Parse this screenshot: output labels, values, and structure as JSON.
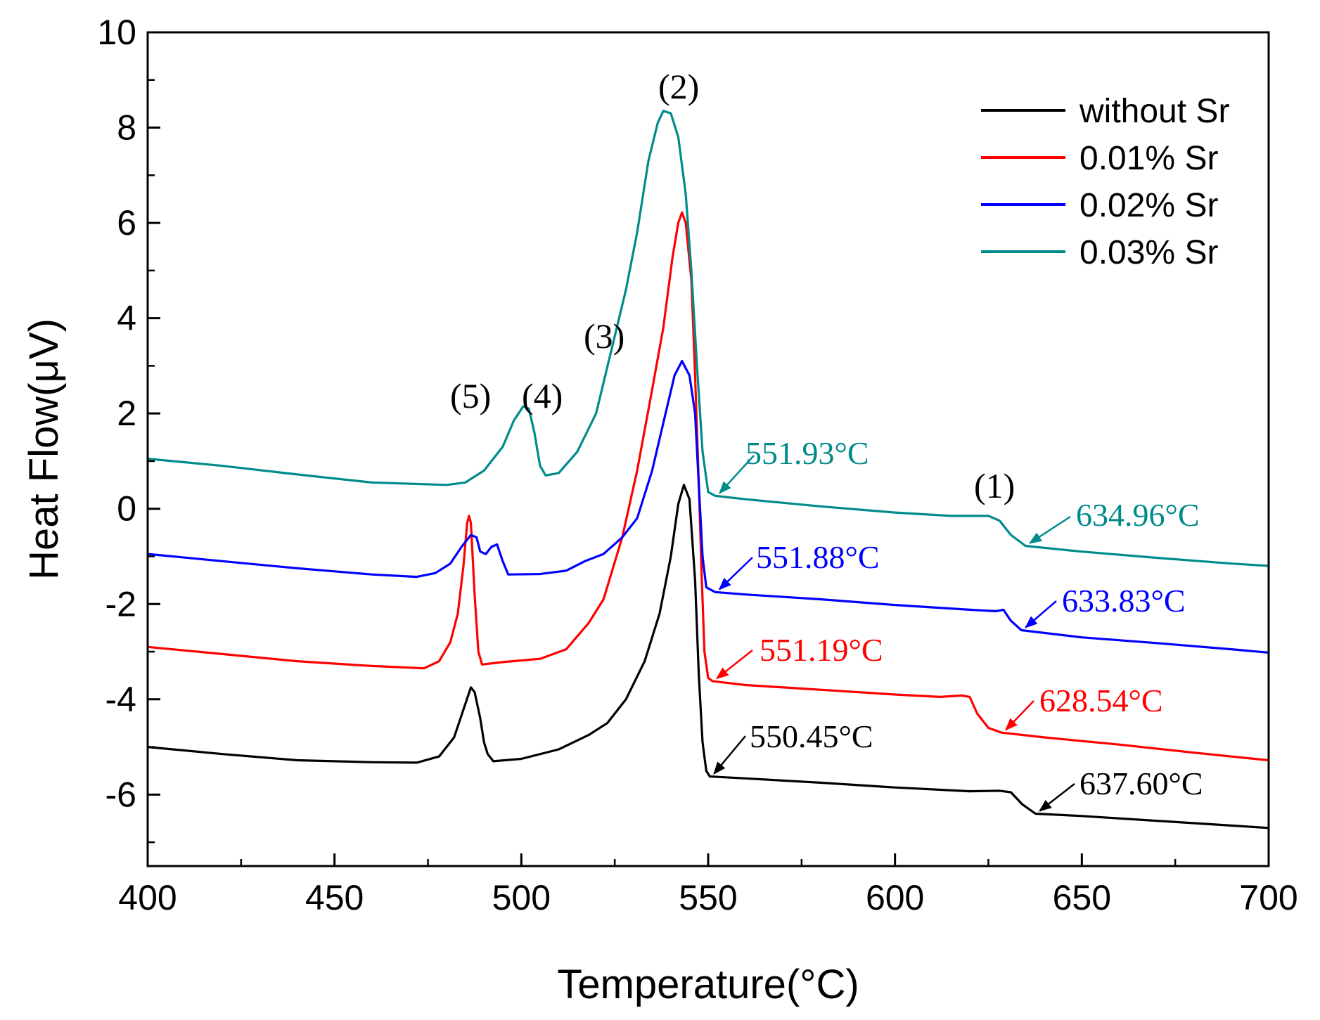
{
  "chart_data": {
    "type": "line",
    "xlabel": "Temperature(°C)",
    "ylabel": "Heat Flow(μV)",
    "xlim": [
      400,
      700
    ],
    "ylim": [
      -7.5,
      10
    ],
    "xticks": [
      400,
      450,
      500,
      550,
      600,
      650,
      700
    ],
    "yticks": [
      -6,
      -4,
      -2,
      0,
      2,
      4,
      6,
      8,
      10
    ],
    "xtick_labels": [
      "400",
      "450",
      "500",
      "550",
      "600",
      "650",
      "700"
    ],
    "ytick_labels": [
      "-6",
      "-4",
      "-2",
      "0",
      "2",
      "4",
      "6",
      "8",
      "10"
    ],
    "legend_position": "top-right",
    "series": [
      {
        "name": "without Sr",
        "color": "#000000",
        "points": [
          [
            400,
            -5.0
          ],
          [
            420,
            -5.15
          ],
          [
            440,
            -5.28
          ],
          [
            460,
            -5.32
          ],
          [
            472,
            -5.33
          ],
          [
            478,
            -5.2
          ],
          [
            482,
            -4.8
          ],
          [
            485,
            -4.1
          ],
          [
            486.5,
            -3.75
          ],
          [
            487.5,
            -3.85
          ],
          [
            489,
            -4.4
          ],
          [
            490,
            -4.9
          ],
          [
            491,
            -5.15
          ],
          [
            492.5,
            -5.3
          ],
          [
            500,
            -5.25
          ],
          [
            510,
            -5.05
          ],
          [
            518,
            -4.75
          ],
          [
            523,
            -4.5
          ],
          [
            528,
            -4.0
          ],
          [
            533,
            -3.2
          ],
          [
            537,
            -2.2
          ],
          [
            540,
            -1.0
          ],
          [
            542,
            0.1
          ],
          [
            543.5,
            0.5
          ],
          [
            545,
            0.2
          ],
          [
            546.5,
            -1.5
          ],
          [
            547.5,
            -3.5
          ],
          [
            548.5,
            -4.9
          ],
          [
            549.5,
            -5.5
          ],
          [
            550.45,
            -5.62
          ],
          [
            560,
            -5.66
          ],
          [
            580,
            -5.75
          ],
          [
            600,
            -5.85
          ],
          [
            620,
            -5.93
          ],
          [
            628,
            -5.92
          ],
          [
            631,
            -5.95
          ],
          [
            634,
            -6.2
          ],
          [
            637.6,
            -6.4
          ],
          [
            650,
            -6.45
          ],
          [
            670,
            -6.55
          ],
          [
            690,
            -6.65
          ],
          [
            700,
            -6.7
          ]
        ]
      },
      {
        "name": "0.01% Sr",
        "color": "#ff0000",
        "points": [
          [
            400,
            -2.9
          ],
          [
            420,
            -3.05
          ],
          [
            440,
            -3.2
          ],
          [
            460,
            -3.3
          ],
          [
            474,
            -3.35
          ],
          [
            478,
            -3.2
          ],
          [
            481,
            -2.8
          ],
          [
            483,
            -2.2
          ],
          [
            484.5,
            -1.2
          ],
          [
            485.5,
            -0.3
          ],
          [
            486,
            -0.15
          ],
          [
            486.5,
            -0.3
          ],
          [
            487.5,
            -1.8
          ],
          [
            488.5,
            -3.0
          ],
          [
            489.5,
            -3.27
          ],
          [
            495,
            -3.22
          ],
          [
            505,
            -3.15
          ],
          [
            512,
            -2.95
          ],
          [
            518,
            -2.4
          ],
          [
            522,
            -1.9
          ],
          [
            527,
            -0.6
          ],
          [
            531,
            0.8
          ],
          [
            535,
            2.5
          ],
          [
            538,
            3.8
          ],
          [
            540.5,
            5.3
          ],
          [
            542,
            6.0
          ],
          [
            543,
            6.22
          ],
          [
            544,
            6.0
          ],
          [
            545.5,
            4.8
          ],
          [
            546.5,
            2.8
          ],
          [
            547.5,
            0.5
          ],
          [
            548.3,
            -1.5
          ],
          [
            549,
            -3.0
          ],
          [
            550,
            -3.55
          ],
          [
            551.19,
            -3.62
          ],
          [
            560,
            -3.7
          ],
          [
            580,
            -3.8
          ],
          [
            600,
            -3.9
          ],
          [
            612,
            -3.95
          ],
          [
            618,
            -3.92
          ],
          [
            620,
            -3.95
          ],
          [
            622,
            -4.3
          ],
          [
            625,
            -4.6
          ],
          [
            628.54,
            -4.7
          ],
          [
            640,
            -4.8
          ],
          [
            660,
            -4.95
          ],
          [
            680,
            -5.12
          ],
          [
            700,
            -5.28
          ]
        ]
      },
      {
        "name": "0.02% Sr",
        "color": "#0000ff",
        "points": [
          [
            400,
            -0.95
          ],
          [
            420,
            -1.1
          ],
          [
            440,
            -1.25
          ],
          [
            460,
            -1.38
          ],
          [
            472,
            -1.43
          ],
          [
            477,
            -1.35
          ],
          [
            481,
            -1.15
          ],
          [
            484,
            -0.8
          ],
          [
            486.5,
            -0.55
          ],
          [
            488,
            -0.6
          ],
          [
            489,
            -0.9
          ],
          [
            490.5,
            -0.95
          ],
          [
            492,
            -0.8
          ],
          [
            493.5,
            -0.75
          ],
          [
            495,
            -1.1
          ],
          [
            496.5,
            -1.38
          ],
          [
            505,
            -1.37
          ],
          [
            512,
            -1.3
          ],
          [
            517,
            -1.1
          ],
          [
            522,
            -0.95
          ],
          [
            527,
            -0.6
          ],
          [
            531,
            -0.2
          ],
          [
            535,
            0.8
          ],
          [
            538,
            1.8
          ],
          [
            541,
            2.8
          ],
          [
            543,
            3.1
          ],
          [
            545,
            2.8
          ],
          [
            546.5,
            2.0
          ],
          [
            547.5,
            0.5
          ],
          [
            548.5,
            -1.0
          ],
          [
            549.5,
            -1.65
          ],
          [
            551.88,
            -1.75
          ],
          [
            560,
            -1.8
          ],
          [
            580,
            -1.9
          ],
          [
            600,
            -2.02
          ],
          [
            620,
            -2.12
          ],
          [
            627,
            -2.15
          ],
          [
            629,
            -2.12
          ],
          [
            631,
            -2.35
          ],
          [
            633.83,
            -2.55
          ],
          [
            650,
            -2.7
          ],
          [
            670,
            -2.82
          ],
          [
            690,
            -2.95
          ],
          [
            700,
            -3.02
          ]
        ]
      },
      {
        "name": "0.03% Sr",
        "color": "#008b8b",
        "points": [
          [
            400,
            1.05
          ],
          [
            420,
            0.9
          ],
          [
            440,
            0.72
          ],
          [
            460,
            0.55
          ],
          [
            480,
            0.5
          ],
          [
            485,
            0.55
          ],
          [
            490,
            0.8
          ],
          [
            495,
            1.3
          ],
          [
            498,
            1.85
          ],
          [
            500.5,
            2.15
          ],
          [
            502,
            2.1
          ],
          [
            503.5,
            1.6
          ],
          [
            505,
            0.9
          ],
          [
            506.5,
            0.7
          ],
          [
            510,
            0.75
          ],
          [
            515,
            1.2
          ],
          [
            520,
            2.0
          ],
          [
            524,
            3.3
          ],
          [
            528,
            4.6
          ],
          [
            531,
            5.8
          ],
          [
            534,
            7.3
          ],
          [
            536.5,
            8.1
          ],
          [
            538,
            8.35
          ],
          [
            540,
            8.3
          ],
          [
            542,
            7.8
          ],
          [
            544,
            6.6
          ],
          [
            545.5,
            5.0
          ],
          [
            547,
            3.0
          ],
          [
            548.5,
            1.2
          ],
          [
            550,
            0.35
          ],
          [
            551.93,
            0.27
          ],
          [
            560,
            0.2
          ],
          [
            580,
            0.05
          ],
          [
            600,
            -0.08
          ],
          [
            615,
            -0.15
          ],
          [
            625,
            -0.15
          ],
          [
            628,
            -0.25
          ],
          [
            631,
            -0.55
          ],
          [
            634.96,
            -0.78
          ],
          [
            650,
            -0.9
          ],
          [
            670,
            -1.03
          ],
          [
            690,
            -1.15
          ],
          [
            700,
            -1.2
          ]
        ]
      }
    ],
    "annotations": [
      {
        "text": "551.93°C",
        "color": "#008b8b",
        "arrow_to": [
          551.93,
          0.27
        ]
      },
      {
        "text": "634.96°C",
        "color": "#008b8b",
        "arrow_to": [
          634.96,
          -0.78
        ]
      },
      {
        "text": "551.88°C",
        "color": "#0000ff",
        "arrow_to": [
          551.88,
          -1.75
        ]
      },
      {
        "text": "633.83°C",
        "color": "#0000ff",
        "arrow_to": [
          633.83,
          -2.55
        ]
      },
      {
        "text": "551.19°C",
        "color": "#ff0000",
        "arrow_to": [
          551.19,
          -3.62
        ]
      },
      {
        "text": "628.54°C",
        "color": "#ff0000",
        "arrow_to": [
          628.54,
          -4.7
        ]
      },
      {
        "text": "550.45°C",
        "color": "#000000",
        "arrow_to": [
          550.45,
          -5.62
        ]
      },
      {
        "text": "637.60°C",
        "color": "#000000",
        "arrow_to": [
          637.6,
          -6.4
        ]
      }
    ],
    "peak_labels": [
      "(1)",
      "(2)",
      "(3)",
      "(4)",
      "(5)"
    ]
  }
}
